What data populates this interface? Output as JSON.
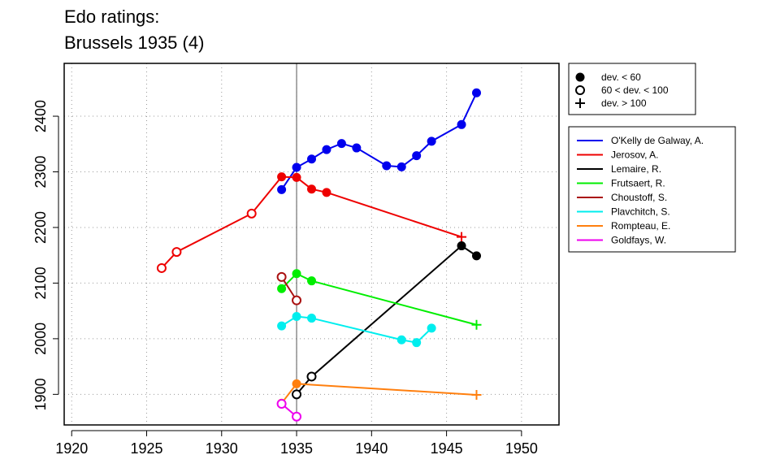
{
  "chart_data": {
    "type": "line",
    "title_lines": [
      "Edo ratings:",
      "Brussels 1935 (4)"
    ],
    "xlabel": "",
    "ylabel": "",
    "xlim": [
      1919.5,
      1952.5
    ],
    "ylim": [
      1845,
      2495
    ],
    "x_ticks": [
      1920,
      1925,
      1930,
      1935,
      1940,
      1945,
      1950
    ],
    "y_ticks": [
      1900,
      2000,
      2100,
      2200,
      2300,
      2400
    ],
    "grid": "dotted",
    "event_year": 1935,
    "marker_legend": [
      {
        "label": "dev. < 60",
        "marker": "filled"
      },
      {
        "label": "60 < dev. < 100",
        "marker": "open"
      },
      {
        "label": "dev. > 100",
        "marker": "plus"
      }
    ],
    "legend_position": "right",
    "series": [
      {
        "name": "O'Kelly de Galway, A.",
        "color": "#0000ee",
        "points": [
          {
            "x": 1934,
            "y": 2268,
            "m": "filled"
          },
          {
            "x": 1935,
            "y": 2308,
            "m": "filled"
          },
          {
            "x": 1936,
            "y": 2323,
            "m": "filled"
          },
          {
            "x": 1937,
            "y": 2340,
            "m": "filled"
          },
          {
            "x": 1938,
            "y": 2351,
            "m": "filled"
          },
          {
            "x": 1939,
            "y": 2343,
            "m": "filled"
          },
          {
            "x": 1941,
            "y": 2311,
            "m": "filled"
          },
          {
            "x": 1942,
            "y": 2309,
            "m": "filled"
          },
          {
            "x": 1943,
            "y": 2329,
            "m": "filled"
          },
          {
            "x": 1944,
            "y": 2355,
            "m": "filled"
          },
          {
            "x": 1946,
            "y": 2385,
            "m": "filled"
          },
          {
            "x": 1947,
            "y": 2442,
            "m": "filled"
          }
        ]
      },
      {
        "name": "Jerosov, A.",
        "color": "#ee0000",
        "points": [
          {
            "x": 1926,
            "y": 2127,
            "m": "open"
          },
          {
            "x": 1927,
            "y": 2156,
            "m": "open"
          },
          {
            "x": 1932,
            "y": 2225,
            "m": "open"
          },
          {
            "x": 1934,
            "y": 2291,
            "m": "filled"
          },
          {
            "x": 1935,
            "y": 2290,
            "m": "filled"
          },
          {
            "x": 1936,
            "y": 2269,
            "m": "filled"
          },
          {
            "x": 1937,
            "y": 2263,
            "m": "filled"
          },
          {
            "x": 1946,
            "y": 2183,
            "m": "plus"
          }
        ]
      },
      {
        "name": "Lemaire, R.",
        "color": "#000000",
        "points": [
          {
            "x": 1935,
            "y": 1900,
            "m": "open"
          },
          {
            "x": 1936,
            "y": 1932,
            "m": "open"
          },
          {
            "x": 1946,
            "y": 2167,
            "m": "filled"
          },
          {
            "x": 1947,
            "y": 2149,
            "m": "filled"
          }
        ]
      },
      {
        "name": "Frutsaert, R.",
        "color": "#00ee00",
        "points": [
          {
            "x": 1934,
            "y": 2090,
            "m": "filled"
          },
          {
            "x": 1935,
            "y": 2117,
            "m": "filled"
          },
          {
            "x": 1936,
            "y": 2104,
            "m": "filled"
          },
          {
            "x": 1947,
            "y": 2025,
            "m": "plus"
          }
        ]
      },
      {
        "name": "Choustoff, S.",
        "color": "#aa1111",
        "points": [
          {
            "x": 1934,
            "y": 2111,
            "m": "open"
          },
          {
            "x": 1935,
            "y": 2069,
            "m": "open"
          }
        ]
      },
      {
        "name": "Plavchitch, S.",
        "color": "#00eeee",
        "points": [
          {
            "x": 1934,
            "y": 2023,
            "m": "filled"
          },
          {
            "x": 1935,
            "y": 2040,
            "m": "filled"
          },
          {
            "x": 1936,
            "y": 2037,
            "m": "filled"
          },
          {
            "x": 1942,
            "y": 1998,
            "m": "filled"
          },
          {
            "x": 1943,
            "y": 1993,
            "m": "filled"
          },
          {
            "x": 1944,
            "y": 2019,
            "m": "filled"
          }
        ]
      },
      {
        "name": "Rompteau, E.",
        "color": "#ff7f0e",
        "points": [
          {
            "x": 1934,
            "y": 1884,
            "m": "filled"
          },
          {
            "x": 1935,
            "y": 1919,
            "m": "filled"
          },
          {
            "x": 1947,
            "y": 1899,
            "m": "plus"
          }
        ]
      },
      {
        "name": "Goldfays, W.",
        "color": "#ee00ee",
        "points": [
          {
            "x": 1934,
            "y": 1883,
            "m": "open"
          },
          {
            "x": 1935,
            "y": 1860,
            "m": "open"
          }
        ]
      }
    ]
  }
}
